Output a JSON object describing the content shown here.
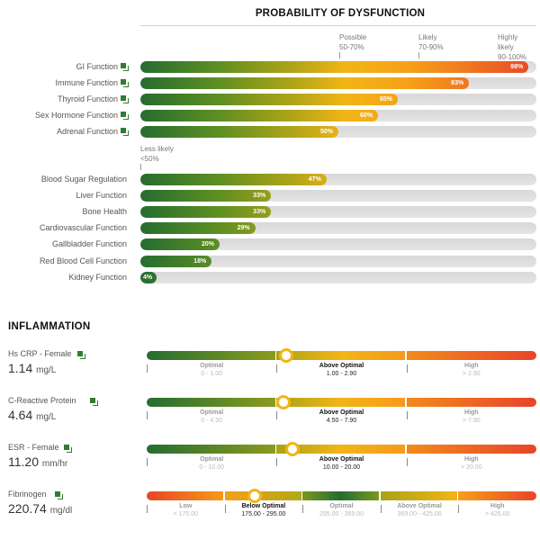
{
  "chart_data": [
    {
      "type": "bar",
      "orientation": "horizontal",
      "title": "PROBABILITY OF DYSFUNCTION",
      "xlim": [
        0,
        100
      ],
      "value_unit": "%",
      "zones": [
        {
          "label_line1": "Less likely",
          "label_line2": "<50%",
          "start": 0
        },
        {
          "label_line1": "Possible",
          "label_line2": "50-70%",
          "start": 50
        },
        {
          "label_line1": "Likely",
          "label_line2": "70-90%",
          "start": 70
        },
        {
          "label_line1": "Highly",
          "label_line2": "likely",
          "label_line3": "90-100%",
          "start": 90
        }
      ],
      "groups": [
        {
          "categories": [
            "GI Function",
            "Immune Function",
            "Thyroid Function",
            "Sex Hormone Function",
            "Adrenal Function"
          ],
          "values": [
            98,
            83,
            65,
            60,
            50
          ],
          "labels": [
            "98%",
            "83%",
            "65%",
            "60%",
            "50%"
          ],
          "has_doc_icon": true
        },
        {
          "categories": [
            "Blood Sugar Regulation",
            "Liver Function",
            "Bone Health",
            "Cardiovascular Function",
            "Gallbladder Function",
            "Red Blood Cell Function",
            "Kidney Function"
          ],
          "values": [
            47,
            33,
            33,
            29,
            20,
            18,
            4
          ],
          "labels": [
            "47%",
            "33%",
            "33%",
            "29%",
            "20%",
            "18%",
            "4%"
          ],
          "has_doc_icon": false
        }
      ],
      "colors": {
        "gradient": [
          "#256d30",
          "#5f8f22",
          "#a8a318",
          "#f2b516",
          "#f5a019",
          "#f07a1e",
          "#e8442a"
        ],
        "track": "#dcdcdc"
      }
    },
    {
      "type": "table",
      "title": "INFLAMMATION",
      "markers": [
        {
          "name": "Hs CRP - Female",
          "value": "1.14",
          "unit": "mg/L",
          "numeric_value": 1.14,
          "active_segment": 1,
          "segments": [
            {
              "name": "Optimal",
              "range": "0 - 1.00",
              "color": "green"
            },
            {
              "name": "Above Optimal",
              "range": "1.00 - 2.90",
              "color": "yellow"
            },
            {
              "name": "High",
              "range": "> 2.90",
              "color": "red"
            }
          ]
        },
        {
          "name": "C-Reactive Protein",
          "value": "4.64",
          "unit": "mg/L",
          "numeric_value": 4.64,
          "active_segment": 1,
          "segments": [
            {
              "name": "Optimal",
              "range": "0 - 4.50",
              "color": "green"
            },
            {
              "name": "Above Optimal",
              "range": "4.50 - 7.90",
              "color": "yellow"
            },
            {
              "name": "High",
              "range": "> 7.90",
              "color": "red"
            }
          ]
        },
        {
          "name": "ESR - Female",
          "value": "11.20",
          "unit": "mm/hr",
          "numeric_value": 11.2,
          "active_segment": 1,
          "segments": [
            {
              "name": "Optimal",
              "range": "0 - 10.00",
              "color": "green"
            },
            {
              "name": "Above Optimal",
              "range": "10.00 - 20.00",
              "color": "yellow"
            },
            {
              "name": "High",
              "range": "> 20.00",
              "color": "red"
            }
          ]
        },
        {
          "name": "Fibrinogen",
          "value": "220.74",
          "unit": "mg/dl",
          "numeric_value": 220.74,
          "active_segment": 1,
          "segments": [
            {
              "name": "Low",
              "range": "< 175.00",
              "color": "red"
            },
            {
              "name": "Below Optimal",
              "range": "175.00 - 295.00",
              "color": "yellow"
            },
            {
              "name": "Optimal",
              "range": "295.00 - 369.00",
              "color": "green"
            },
            {
              "name": "Above Optimal",
              "range": "369.00 - 425.00",
              "color": "yellow"
            },
            {
              "name": "High",
              "range": "> 425.00",
              "color": "red"
            }
          ]
        }
      ]
    }
  ]
}
